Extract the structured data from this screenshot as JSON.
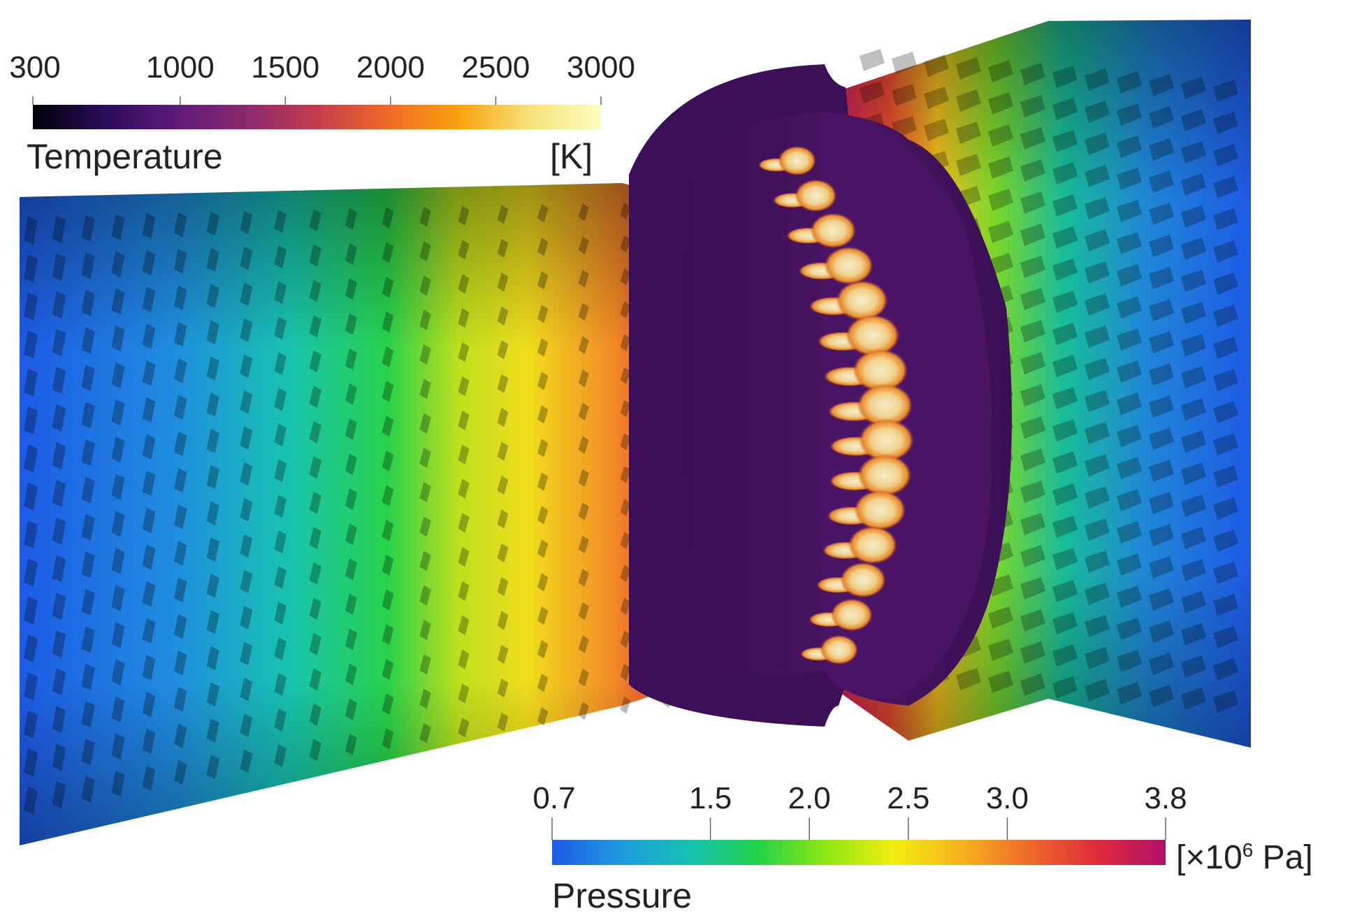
{
  "temperature_bar": {
    "title": "Temperature",
    "unit": "[K]",
    "ticks": [
      "300",
      "1000",
      "1500",
      "2000",
      "2500",
      "3000"
    ],
    "tick_values": [
      300,
      1000,
      1500,
      2000,
      2500,
      3000
    ],
    "range": [
      300,
      3000
    ],
    "colormap": [
      "#000004",
      "#2a0c5a",
      "#5c1a7a",
      "#8a2a6e",
      "#c43c4e",
      "#ee6a28",
      "#f9a20c",
      "#f6e27a",
      "#fcfdbf"
    ]
  },
  "pressure_bar": {
    "title": "Pressure",
    "unit_prefix": "[×10",
    "unit_exponent": "6",
    "unit_suffix": " Pa]",
    "ticks": [
      "0.7",
      "1.5",
      "2.0",
      "2.5",
      "3.0",
      "3.8"
    ],
    "tick_values": [
      0.7,
      1.5,
      2.0,
      2.5,
      3.0,
      3.8
    ],
    "range": [
      0.7,
      3.8
    ],
    "colormap": [
      "#1e5ae6",
      "#1e9be0",
      "#16c0b4",
      "#22d24a",
      "#8be614",
      "#f2ee10",
      "#f7b21e",
      "#ef6a2a",
      "#e02a3c",
      "#b0106a"
    ]
  }
}
